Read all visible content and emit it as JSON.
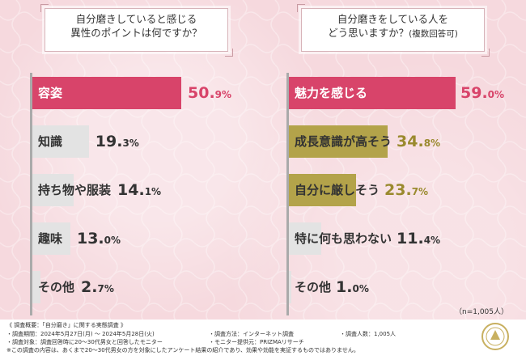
{
  "colors": {
    "highlight": "#d8446a",
    "gray": "#e3e3e3",
    "olive": "#b3a34a",
    "olive_text": "#9a8a2e",
    "pink_text": "#d8446a",
    "gray_text": "#333333"
  },
  "chart_data": [
    {
      "type": "bar",
      "title_lines": [
        "自分磨きしていると感じる",
        "異性のポイントは何ですか？"
      ],
      "categories": [
        "容姿",
        "知識",
        "持ち物や服装",
        "趣味",
        "その他"
      ],
      "values": [
        50.9,
        19.3,
        14.1,
        13.0,
        2.7
      ],
      "value_labels": [
        {
          "int": "50.",
          "dec": "9%"
        },
        {
          "int": "19.",
          "dec": "3%"
        },
        {
          "int": "14.",
          "dec": "1%"
        },
        {
          "int": "13.",
          "dec": "0%"
        },
        {
          "int": "2.",
          "dec": "7%"
        }
      ],
      "xlim": [
        0,
        50.9
      ]
    },
    {
      "type": "bar",
      "title_lines": [
        "自分磨きをしている人を",
        "どう思いますか？"
      ],
      "title_suffix": "(複数回答可)",
      "categories": [
        "魅力を感じる",
        "成長意識が高そう",
        "自分に厳しそう",
        "特に何も思わない",
        "その他"
      ],
      "values": [
        59.0,
        34.8,
        23.7,
        11.4,
        1.0
      ],
      "value_labels": [
        {
          "int": "59.",
          "dec": "0%"
        },
        {
          "int": "34.",
          "dec": "8%"
        },
        {
          "int": "23.",
          "dec": "7%"
        },
        {
          "int": "11.",
          "dec": "4%"
        },
        {
          "int": "1.",
          "dec": "0%"
        }
      ],
      "xlim": [
        0,
        59.0
      ],
      "note": "（n=1,005人）"
    }
  ],
  "footer": {
    "line1": "《 調査概要：「自分磨き」に関する実態調査 》",
    "period": "・調査期間：2024年5月27日(月) ～ 2024年5月28日(火)",
    "method": "・調査方法：インターネット調査",
    "count": "・調査人数：1,005人",
    "target": "・調査対象：調査回答時に20～30代男女と回答したモニター",
    "provider": "・モニター提供元：PRIZMAリサーチ",
    "disclaimer": "※この調査の内容は、あくまで20～30代男女の方を対象にしたアンケート結果の紹介であり、効果や効能を実証するものではありません。"
  }
}
